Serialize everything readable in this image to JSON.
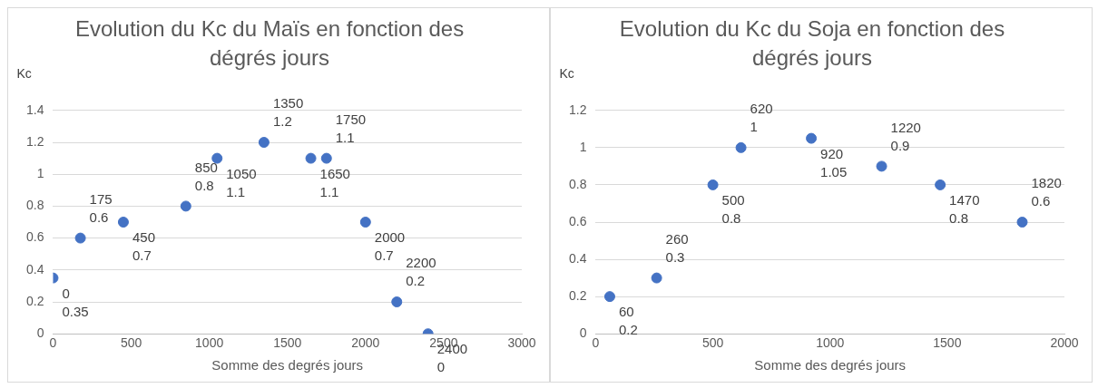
{
  "chart_data": [
    {
      "type": "scatter",
      "title": "Evolution du Kc du Maïs en fonction des dégrés jours",
      "xlabel": "Somme des degrés jours",
      "ylabel": "Kc",
      "x": [
        0,
        175,
        450,
        850,
        1050,
        1350,
        1650,
        1750,
        2000,
        2200,
        2400
      ],
      "series": [
        {
          "color": "#4472c4",
          "values": [
            0.35,
            0.6,
            0.7,
            0.8,
            1.1,
            1.2,
            1.1,
            1.1,
            0.7,
            0.2,
            0
          ],
          "value_labels": [
            "0\n0.35",
            "175\n0.6",
            "450\n0.7",
            "850\n0.8",
            "1050\n1.1",
            "1350\n1.2",
            "1650\n1.1",
            "1750\n1.1",
            "2000\n0.7",
            "2200\n0.2",
            "2400\n0"
          ]
        }
      ],
      "xlim": [
        0,
        3000
      ],
      "xticks": [
        0,
        500,
        1000,
        1500,
        2000,
        2500,
        3000
      ],
      "ylim": [
        0,
        1.4
      ],
      "yticks": [
        0,
        0.2,
        0.4,
        0.6,
        0.8,
        1,
        1.2,
        1.4
      ],
      "grid": "y",
      "legend": false,
      "marker": "circle"
    },
    {
      "type": "scatter",
      "title": "Evolution du Kc du Soja en fonction des dégrés jours",
      "xlabel": "Somme des degrés jours",
      "ylabel": "Kc",
      "x": [
        60,
        260,
        500,
        620,
        920,
        1220,
        1470,
        1820
      ],
      "series": [
        {
          "color": "#4472c4",
          "values": [
            0.2,
            0.3,
            0.8,
            1,
            1.05,
            0.9,
            0.8,
            0.6
          ],
          "value_labels": [
            "60\n0.2",
            "260\n0.3",
            "500\n0.8",
            "620\n1",
            "920\n1.05",
            "1220\n0.9",
            "1470\n0.8",
            "1820\n0.6"
          ]
        }
      ],
      "xlim": [
        0,
        2000
      ],
      "xticks": [
        0,
        500,
        1000,
        1500,
        2000
      ],
      "ylim": [
        0,
        1.2
      ],
      "yticks": [
        0,
        0.2,
        0.4,
        0.6,
        0.8,
        1,
        1.2
      ],
      "grid": "y",
      "legend": false,
      "marker": "circle"
    }
  ]
}
